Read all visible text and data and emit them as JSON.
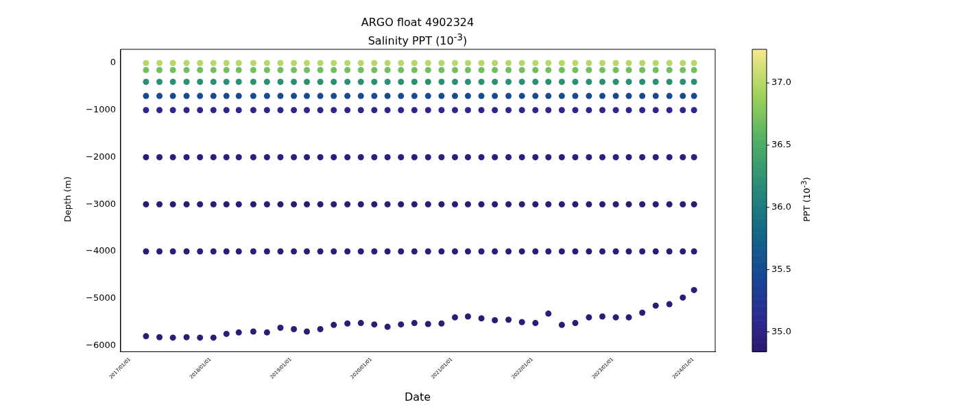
{
  "chart_data": {
    "type": "scatter",
    "title": "ARGO float 4902324",
    "subtitle": "Salinity PPT (10$^{-3}$)",
    "xlabel": "Date",
    "ylabel": "Depth (m)",
    "clabel": "PPT (10$^{-3}$)",
    "x": [
      "2017-03-15",
      "2017-05-15",
      "2017-07-15",
      "2017-09-15",
      "2017-11-15",
      "2018-01-15",
      "2018-03-15",
      "2018-05-10",
      "2018-07-15",
      "2018-09-15",
      "2018-11-15",
      "2019-01-15",
      "2019-03-15",
      "2019-05-15",
      "2019-07-15",
      "2019-09-15",
      "2019-11-15",
      "2020-01-15",
      "2020-03-15",
      "2020-05-15",
      "2020-07-15",
      "2020-09-15",
      "2020-11-15",
      "2021-01-15",
      "2021-03-15",
      "2021-05-15",
      "2021-07-15",
      "2021-09-15",
      "2021-11-15",
      "2022-01-15",
      "2022-03-15",
      "2022-05-15",
      "2022-07-15",
      "2022-09-15",
      "2022-11-15",
      "2023-01-15",
      "2023-03-15",
      "2023-05-15",
      "2023-07-15",
      "2023-09-15",
      "2023-11-15",
      "2024-01-05"
    ],
    "series": [
      {
        "values": [
          0,
          0,
          0,
          0,
          0,
          0,
          0,
          0,
          0,
          0,
          0,
          0,
          0,
          0,
          0,
          0,
          0,
          0,
          0,
          0,
          0,
          0,
          0,
          0,
          0,
          0,
          0,
          0,
          0,
          0,
          0,
          0,
          0,
          0,
          0,
          0,
          0,
          0,
          0,
          0,
          0,
          0
        ],
        "cvalues": [
          37.0,
          37.0,
          37.0,
          37.0,
          37.0,
          37.0,
          37.0,
          37.0,
          37.0,
          37.0,
          37.0,
          37.0,
          37.0,
          37.0,
          37.0,
          37.0,
          37.0,
          37.0,
          37.0,
          37.0,
          37.0,
          37.0,
          37.0,
          37.0,
          37.0,
          37.0,
          37.0,
          37.0,
          37.0,
          37.0,
          37.0,
          37.0,
          37.0,
          37.0,
          37.0,
          37.0,
          37.0,
          37.0,
          37.0,
          37.0,
          37.0,
          37.0
        ]
      },
      {
        "values": [
          -150,
          -150,
          -150,
          -150,
          -150,
          -150,
          -150,
          -150,
          -150,
          -150,
          -150,
          -150,
          -150,
          -150,
          -150,
          -150,
          -150,
          -150,
          -150,
          -150,
          -150,
          -150,
          -150,
          -150,
          -150,
          -150,
          -150,
          -150,
          -150,
          -150,
          -150,
          -150,
          -150,
          -150,
          -150,
          -150,
          -150,
          -150,
          -150,
          -150,
          -150,
          -150
        ],
        "cvalues": [
          36.7,
          36.7,
          36.7,
          36.7,
          36.7,
          36.7,
          36.7,
          36.7,
          36.7,
          36.7,
          36.7,
          36.7,
          36.7,
          36.7,
          36.7,
          36.7,
          36.7,
          36.7,
          36.7,
          36.7,
          36.7,
          36.7,
          36.7,
          36.7,
          36.7,
          36.7,
          36.7,
          36.7,
          36.7,
          36.7,
          36.7,
          36.7,
          36.7,
          36.7,
          36.7,
          36.7,
          36.7,
          36.7,
          36.7,
          36.7,
          36.7,
          36.7
        ]
      },
      {
        "values": [
          -400,
          -400,
          -400,
          -400,
          -400,
          -400,
          -400,
          -400,
          -400,
          -400,
          -400,
          -400,
          -400,
          -400,
          -400,
          -400,
          -400,
          -400,
          -400,
          -400,
          -400,
          -400,
          -400,
          -400,
          -400,
          -400,
          -400,
          -400,
          -400,
          -400,
          -400,
          -400,
          -400,
          -400,
          -400,
          -400,
          -400,
          -400,
          -400,
          -400,
          -400,
          -400
        ],
        "cvalues": [
          36.2,
          36.2,
          36.2,
          36.2,
          36.2,
          36.2,
          36.2,
          36.2,
          36.2,
          36.2,
          36.2,
          36.2,
          36.2,
          36.2,
          36.2,
          36.2,
          36.2,
          36.2,
          36.2,
          36.2,
          36.2,
          36.2,
          36.2,
          36.2,
          36.2,
          36.2,
          36.2,
          36.2,
          36.2,
          36.2,
          36.2,
          36.2,
          36.2,
          36.2,
          36.2,
          36.2,
          36.2,
          36.2,
          36.2,
          36.2,
          36.2,
          36.2
        ]
      },
      {
        "values": [
          -700,
          -700,
          -700,
          -700,
          -700,
          -700,
          -700,
          -700,
          -700,
          -700,
          -700,
          -700,
          -700,
          -700,
          -700,
          -700,
          -700,
          -700,
          -700,
          -700,
          -700,
          -700,
          -700,
          -700,
          -700,
          -700,
          -700,
          -700,
          -700,
          -700,
          -700,
          -700,
          -700,
          -700,
          -700,
          -700,
          -700,
          -700,
          -700,
          -700,
          -700,
          -700
        ],
        "cvalues": [
          35.5,
          35.5,
          35.5,
          35.5,
          35.5,
          35.5,
          35.5,
          35.5,
          35.5,
          35.5,
          35.5,
          35.5,
          35.5,
          35.5,
          35.5,
          35.5,
          35.5,
          35.5,
          35.5,
          35.5,
          35.5,
          35.5,
          35.5,
          35.5,
          35.5,
          35.5,
          35.5,
          35.5,
          35.5,
          35.5,
          35.5,
          35.5,
          35.5,
          35.5,
          35.5,
          35.5,
          35.5,
          35.5,
          35.5,
          35.5,
          35.5,
          35.5
        ]
      },
      {
        "values": [
          -1000,
          -1000,
          -1000,
          -1000,
          -1000,
          -1000,
          -1000,
          -1000,
          -1000,
          -1000,
          -1000,
          -1000,
          -1000,
          -1000,
          -1000,
          -1000,
          -1000,
          -1000,
          -1000,
          -1000,
          -1000,
          -1000,
          -1000,
          -1000,
          -1000,
          -1000,
          -1000,
          -1000,
          -1000,
          -1000,
          -1000,
          -1000,
          -1000,
          -1000,
          -1000,
          -1000,
          -1000,
          -1000,
          -1000,
          -1000,
          -1000,
          -1000
        ],
        "cvalues": [
          35.05,
          35.05,
          35.05,
          35.05,
          35.05,
          35.05,
          35.05,
          35.05,
          35.05,
          35.05,
          35.05,
          35.05,
          35.05,
          35.05,
          35.05,
          35.05,
          35.05,
          35.05,
          35.05,
          35.05,
          35.05,
          35.05,
          35.05,
          35.05,
          35.05,
          35.05,
          35.05,
          35.05,
          35.05,
          35.05,
          35.05,
          35.05,
          35.05,
          35.05,
          35.05,
          35.05,
          35.05,
          35.05,
          35.05,
          35.05,
          35.05,
          35.05
        ]
      },
      {
        "values": [
          -2000,
          -2000,
          -2000,
          -2000,
          -2000,
          -2000,
          -2000,
          -2000,
          -2000,
          -2000,
          -2000,
          -2000,
          -2000,
          -2000,
          -2000,
          -2000,
          -2000,
          -2000,
          -2000,
          -2000,
          -2000,
          -2000,
          -2000,
          -2000,
          -2000,
          -2000,
          -2000,
          -2000,
          -2000,
          -2000,
          -2000,
          -2000,
          -2000,
          -2000,
          -2000,
          -2000,
          -2000,
          -2000,
          -2000,
          -2000,
          -2000,
          -2000
        ],
        "cvalues": [
          34.95,
          34.95,
          34.95,
          34.95,
          34.95,
          34.95,
          34.95,
          34.95,
          34.95,
          34.95,
          34.95,
          34.95,
          34.95,
          34.95,
          34.95,
          34.95,
          34.95,
          34.95,
          34.95,
          34.95,
          34.95,
          34.95,
          34.95,
          34.95,
          34.95,
          34.95,
          34.95,
          34.95,
          34.95,
          34.95,
          34.95,
          34.95,
          34.95,
          34.95,
          34.95,
          34.95,
          34.95,
          34.95,
          34.95,
          34.95,
          34.95,
          34.95
        ]
      },
      {
        "values": [
          -3000,
          -3000,
          -3000,
          -3000,
          -3000,
          -3000,
          -3000,
          -3000,
          -3000,
          -3000,
          -3000,
          -3000,
          -3000,
          -3000,
          -3000,
          -3000,
          -3000,
          -3000,
          -3000,
          -3000,
          -3000,
          -3000,
          -3000,
          -3000,
          -3000,
          -3000,
          -3000,
          -3000,
          -3000,
          -3000,
          -3000,
          -3000,
          -3000,
          -3000,
          -3000,
          -3000,
          -3000,
          -3000,
          -3000,
          -3000,
          -3000,
          -3000
        ],
        "cvalues": [
          34.9,
          34.9,
          34.9,
          34.9,
          34.9,
          34.9,
          34.9,
          34.9,
          34.9,
          34.9,
          34.9,
          34.9,
          34.9,
          34.9,
          34.9,
          34.9,
          34.9,
          34.9,
          34.9,
          34.9,
          34.9,
          34.9,
          34.9,
          34.9,
          34.9,
          34.9,
          34.9,
          34.9,
          34.9,
          34.9,
          34.9,
          34.9,
          34.9,
          34.9,
          34.9,
          34.9,
          34.9,
          34.9,
          34.9,
          34.9,
          34.9,
          34.9
        ]
      },
      {
        "values": [
          -4000,
          -4000,
          -4000,
          -4000,
          -4000,
          -4000,
          -4000,
          -4000,
          -4000,
          -4000,
          -4000,
          -4000,
          -4000,
          -4000,
          -4000,
          -4000,
          -4000,
          -4000,
          -4000,
          -4000,
          -4000,
          -4000,
          -4000,
          -4000,
          -4000,
          -4000,
          -4000,
          -4000,
          -4000,
          -4000,
          -4000,
          -4000,
          -4000,
          -4000,
          -4000,
          -4000,
          -4000,
          -4000,
          -4000,
          -4000,
          -4000,
          -4000
        ],
        "cvalues": [
          34.9,
          34.9,
          34.9,
          34.9,
          34.9,
          34.9,
          34.9,
          34.9,
          34.9,
          34.9,
          34.9,
          34.9,
          34.9,
          34.9,
          34.9,
          34.9,
          34.9,
          34.9,
          34.9,
          34.9,
          34.9,
          34.9,
          34.9,
          34.9,
          34.9,
          34.9,
          34.9,
          34.9,
          34.9,
          34.9,
          34.9,
          34.9,
          34.9,
          34.9,
          34.9,
          34.9,
          34.9,
          34.9,
          34.9,
          34.9,
          34.9,
          34.9
        ]
      },
      {
        "values": [
          -5800,
          -5820,
          -5830,
          -5820,
          -5830,
          -5830,
          -5750,
          -5720,
          -5700,
          -5720,
          -5620,
          -5650,
          -5700,
          -5650,
          -5560,
          -5530,
          -5520,
          -5550,
          -5600,
          -5550,
          -5520,
          -5540,
          -5530,
          -5400,
          -5380,
          -5420,
          -5460,
          -5450,
          -5500,
          -5520,
          -5320,
          -5560,
          -5520,
          -5400,
          -5380,
          -5400,
          -5400,
          -5300,
          -5150,
          -5120,
          -4980,
          -4820
        ],
        "cvalues": [
          34.9,
          34.9,
          34.9,
          34.9,
          34.9,
          34.9,
          34.9,
          34.9,
          34.9,
          34.9,
          34.9,
          34.9,
          34.9,
          34.9,
          34.9,
          34.9,
          34.9,
          34.9,
          34.9,
          34.9,
          34.9,
          34.9,
          34.9,
          34.9,
          34.9,
          34.9,
          34.9,
          34.9,
          34.9,
          34.9,
          34.9,
          34.9,
          34.9,
          34.9,
          34.9,
          34.9,
          34.9,
          34.9,
          34.9,
          34.9,
          34.9,
          34.9
        ]
      }
    ],
    "xlim": [
      "2016-11-20",
      "2024-04-10"
    ],
    "xticks": [
      {
        "value": "2017-01-01",
        "label": "2017/01/01"
      },
      {
        "value": "2018-01-01",
        "label": "2018/01/01"
      },
      {
        "value": "2019-01-01",
        "label": "2019/01/01"
      },
      {
        "value": "2020-01-01",
        "label": "2020/01/01"
      },
      {
        "value": "2021-01-01",
        "label": "2021/01/01"
      },
      {
        "value": "2022-01-01",
        "label": "2022/01/01"
      },
      {
        "value": "2023-01-01",
        "label": "2023/01/01"
      },
      {
        "value": "2024-01-01",
        "label": "2024/01/01"
      }
    ],
    "ylim": [
      -6130,
      290
    ],
    "yticks": [
      {
        "value": -6000,
        "label": "−6000"
      },
      {
        "value": -5000,
        "label": "−5000"
      },
      {
        "value": -4000,
        "label": "−4000"
      },
      {
        "value": -3000,
        "label": "−3000"
      },
      {
        "value": -2000,
        "label": "−2000"
      },
      {
        "value": -1000,
        "label": "−1000"
      },
      0
    ],
    "clim": [
      34.84,
      37.27
    ],
    "cticks": [
      {
        "value": 35,
        "label": "35.0"
      },
      35.5,
      {
        "value": 36,
        "label": "36.0"
      },
      36.5,
      {
        "value": 37,
        "label": "37.0"
      }
    ],
    "marker": "circle",
    "legend": false,
    "grid": false
  }
}
